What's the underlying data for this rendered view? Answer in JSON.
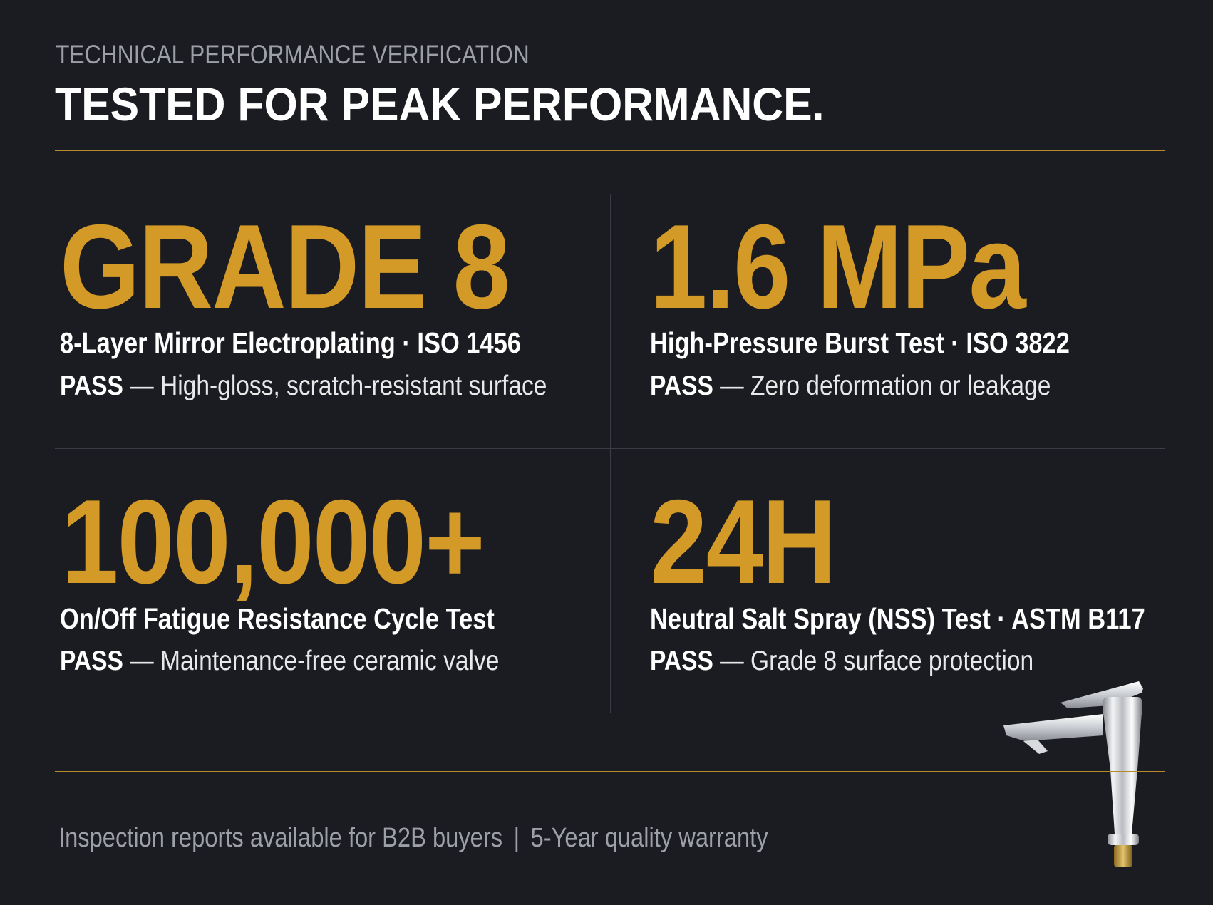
{
  "header": {
    "kicker": "TECHNICAL PERFORMANCE VERIFICATION",
    "headline": "TESTED FOR PEAK PERFORMANCE."
  },
  "specs": [
    {
      "value": "GRADE 8",
      "title": "8-Layer Mirror Electroplating · ISO 1456",
      "status": "PASS",
      "note": " — High-gloss, scratch-resistant surface"
    },
    {
      "value": "1.6 MPa",
      "title": "High-Pressure Burst Test · ISO 3822",
      "status": "PASS",
      "note": " — Zero deformation or leakage"
    },
    {
      "value": "100,000+",
      "title": "On/Off Fatigue Resistance Cycle Test",
      "status": "PASS",
      "note": " — Maintenance-free ceramic valve"
    },
    {
      "value": "24H",
      "title": "Neutral Salt Spray (NSS) Test · ASTM B117",
      "status": "PASS",
      "note": " — Grade 8 surface protection"
    }
  ],
  "footer": {
    "left": "Inspection reports available for B2B buyers",
    "separator": "|",
    "right": "5-Year quality warranty"
  },
  "colors": {
    "background": "#1b1c21",
    "accent_gold": "#d49a28",
    "rule_gold": "#b88b2a"
  },
  "icons": {
    "product_image": "faucet-icon"
  }
}
